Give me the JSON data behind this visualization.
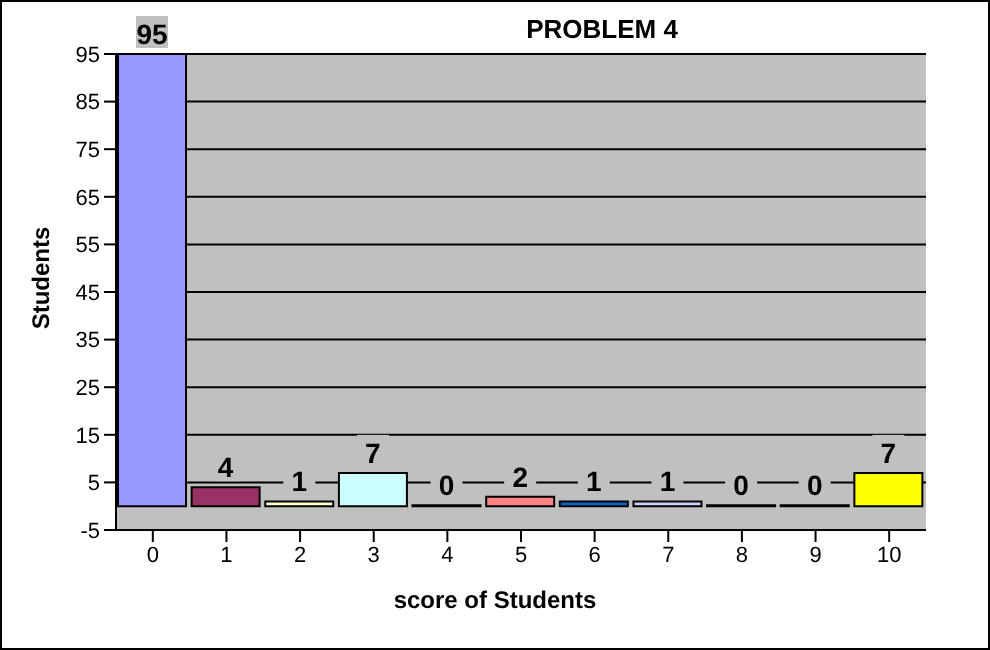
{
  "chart_data": {
    "type": "bar",
    "title": "PROBLEM 4",
    "xlabel": "score of Students",
    "ylabel": "Students",
    "categories": [
      "0",
      "1",
      "2",
      "3",
      "4",
      "5",
      "6",
      "7",
      "8",
      "9",
      "10"
    ],
    "values": [
      95,
      4,
      1,
      7,
      0,
      2,
      1,
      1,
      0,
      0,
      7
    ],
    "colors": [
      "#9999ff",
      "#993366",
      "#ffffcc",
      "#ccffff",
      "#660066",
      "#ff8080",
      "#0066cc",
      "#ccccff",
      "#000080",
      "#ff00ff",
      "#ffff00"
    ],
    "ylim": [
      -5,
      95
    ],
    "yticks": [
      -5,
      5,
      15,
      25,
      35,
      45,
      55,
      65,
      75,
      85,
      95
    ],
    "grid": "y",
    "data_labels": true,
    "legend": false
  }
}
